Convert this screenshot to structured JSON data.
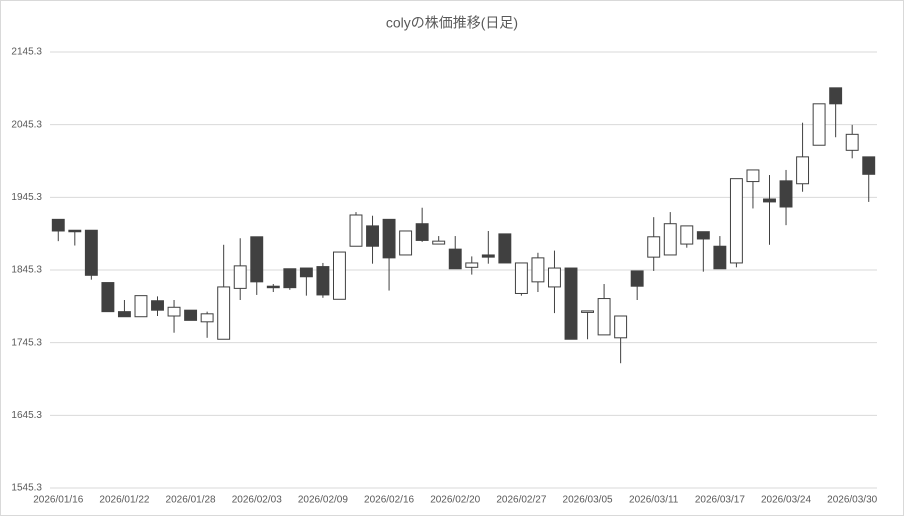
{
  "chart_data": {
    "type": "candlestick",
    "title": "colyの株価推移(日足)",
    "categories": [
      "2026/01/16",
      null,
      null,
      null,
      "2026/01/22",
      null,
      null,
      null,
      "2026/01/28",
      null,
      null,
      null,
      "2026/02/03",
      null,
      null,
      null,
      "2026/02/09",
      null,
      null,
      null,
      "2026/02/16",
      null,
      null,
      null,
      "2026/02/20",
      null,
      null,
      null,
      "2026/02/27",
      null,
      null,
      null,
      "2026/03/05",
      null,
      null,
      null,
      "2026/03/11",
      null,
      null,
      null,
      "2026/03/17",
      null,
      null,
      null,
      "2026/03/24",
      null,
      null,
      null,
      "2026/03/30",
      null
    ],
    "open": [
      1915,
      1900,
      1900,
      1828,
      1788,
      1781,
      1803,
      1782,
      1790,
      1774,
      1750,
      1820,
      1891,
      1823,
      1847,
      1848,
      1850,
      1805,
      1878,
      1906,
      1915,
      1866,
      1909,
      1881,
      1874,
      1849,
      1866,
      1895,
      1813,
      1829,
      1822,
      1848,
      1789,
      1756,
      1752,
      1844,
      1863,
      1866,
      1881,
      1898,
      1878,
      1855,
      1967,
      1943,
      1968,
      1964,
      2017,
      2096,
      2010,
      2001
    ],
    "high": [
      1915,
      1900,
      1900,
      1828,
      1804,
      1810,
      1809,
      1804,
      1790,
      1788,
      1880,
      1889,
      1891,
      1826,
      1847,
      1848,
      1855,
      1870,
      1925,
      1920,
      1915,
      1899,
      1931,
      1892,
      1892,
      1864,
      1899,
      1895,
      1855,
      1869,
      1872,
      1848,
      1789,
      1826,
      1782,
      1844,
      1918,
      1925,
      1906,
      1898,
      1892,
      1971,
      1983,
      1976,
      1983,
      2048,
      2074,
      2096,
      2045,
      2001
    ],
    "low": [
      1885,
      1879,
      1832,
      1788,
      1781,
      1781,
      1782,
      1759,
      1776,
      1752,
      1750,
      1804,
      1811,
      1815,
      1818,
      1810,
      1807,
      1805,
      1878,
      1854,
      1817,
      1866,
      1884,
      1881,
      1847,
      1839,
      1854,
      1855,
      1810,
      1815,
      1786,
      1750,
      1750,
      1756,
      1717,
      1804,
      1844,
      1866,
      1876,
      1843,
      1847,
      1849,
      1930,
      1880,
      1907,
      1953,
      2017,
      2028,
      1999,
      1939
    ],
    "close": [
      1899,
      1899,
      1838,
      1788,
      1781,
      1810,
      1790,
      1794,
      1776,
      1785,
      1822,
      1851,
      1829,
      1822,
      1821,
      1836,
      1811,
      1870,
      1921,
      1878,
      1862,
      1899,
      1886,
      1885,
      1847,
      1855,
      1863,
      1855,
      1855,
      1862,
      1848,
      1750,
      1789,
      1806,
      1782,
      1823,
      1891,
      1909,
      1906,
      1888,
      1847,
      1971,
      1983,
      1939,
      1932,
      2001,
      2074,
      2074,
      2032,
      1977
    ],
    "up_color": "#ffffff",
    "down_color": "#404040",
    "ylim": [
      1545.3,
      2145.3
    ],
    "yticks": [
      1545.3,
      1645.3,
      1745.3,
      1845.3,
      1945.3,
      2045.3,
      2145.3
    ],
    "grid": true
  }
}
